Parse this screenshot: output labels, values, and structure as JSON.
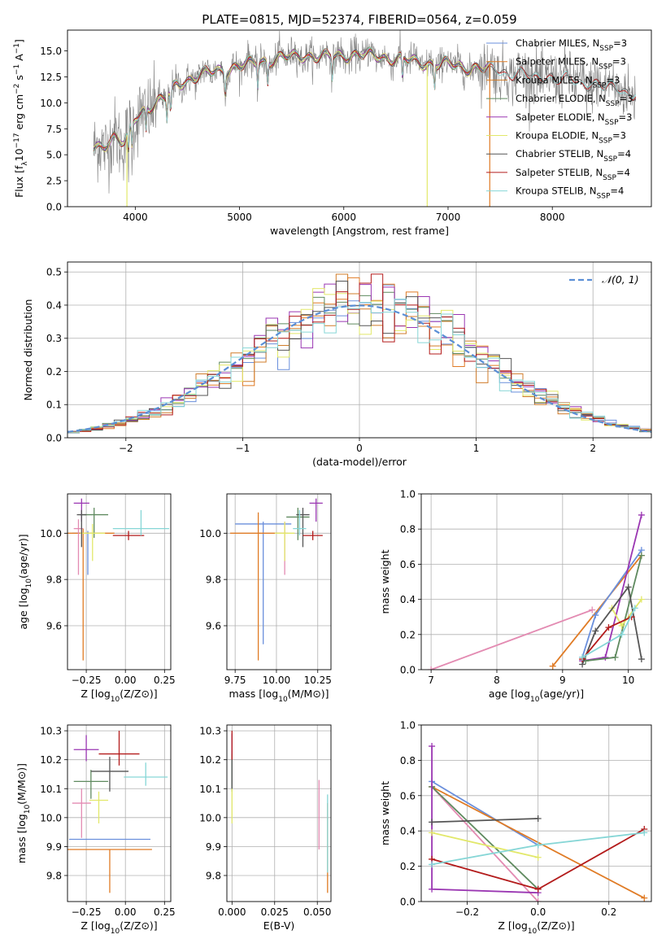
{
  "figure": {
    "title": "PLATE=0815, MJD=52374, FIBERID=0564, z=0.059"
  },
  "colors": {
    "series": [
      "#6a8fdc",
      "#e07b25",
      "#d07c2a",
      "#5f8a5f",
      "#9a36b2",
      "#e2e86a",
      "#555555",
      "#b31b1b",
      "#86d6d6"
    ],
    "data": "#808080",
    "mixed_pink": "#e38bb2",
    "grid": "#b0b0b0"
  },
  "chart_data": [
    {
      "id": "spectrum",
      "type": "line",
      "title": "PLATE=0815, MJD=52374, FIBERID=0564, z=0.059",
      "xlabel": "wavelength [Angstrom, rest frame]",
      "ylabel": "Flux [f_λ10^-17 erg cm^-2 s^-1 A^-1]",
      "xlim": [
        3350,
        8950
      ],
      "ylim": [
        0,
        17
      ],
      "xticks": [
        4000,
        5000,
        6000,
        7000,
        8000
      ],
      "yticks": [
        0.0,
        2.5,
        5.0,
        7.5,
        10.0,
        12.5,
        15.0
      ],
      "grid": false,
      "legend_position": "top-right",
      "series": [
        {
          "name": "Chabrier MILES, N_SSP=3",
          "color": "#6a8fdc"
        },
        {
          "name": "Salpeter MILES, N_SSP=3",
          "color": "#e07b25"
        },
        {
          "name": "Kroupa MILES, N_SSP=3",
          "color": "#d07c2a"
        },
        {
          "name": "Chabrier ELODIE, N_SSP=3",
          "color": "#5f8a5f"
        },
        {
          "name": "Salpeter ELODIE, N_SSP=3",
          "color": "#9a36b2"
        },
        {
          "name": "Kroupa ELODIE, N_SSP=3",
          "color": "#e2e86a"
        },
        {
          "name": "Chabrier STELIB, N_SSP=4",
          "color": "#555555"
        },
        {
          "name": "Salpeter STELIB, N_SSP=4",
          "color": "#b31b1b"
        },
        {
          "name": "Kroupa STELIB, N_SSP=4",
          "color": "#86d6d6"
        }
      ],
      "continuum": {
        "x": [
          3600,
          3700,
          3800,
          3900,
          4000,
          4100,
          4200,
          4300,
          4400,
          4600,
          4800,
          5000,
          5200,
          5400,
          5600,
          5800,
          6000,
          6200,
          6400,
          6600,
          6800,
          7000,
          7200,
          7400,
          7500,
          7600,
          7700,
          7800,
          7900,
          8000,
          8100,
          8200,
          8300,
          8400,
          8500,
          8600,
          8700,
          8800
        ],
        "y": [
          5.5,
          6.0,
          6.8,
          6.0,
          8.5,
          9.5,
          10.0,
          10.5,
          11.8,
          12.6,
          13.1,
          13.5,
          14.0,
          14.3,
          14.6,
          14.4,
          14.6,
          14.6,
          14.4,
          14.1,
          13.8,
          13.7,
          13.4,
          13.2,
          13.0,
          12.9,
          12.7,
          12.5,
          12.4,
          12.5,
          12.2,
          12.1,
          12.0,
          11.8,
          11.6,
          11.4,
          11.1,
          10.9
        ]
      },
      "model_dropouts": [
        {
          "x": 6800,
          "min_y": 0,
          "color": "#e2e86a"
        },
        {
          "x": 7400,
          "min_y": 0,
          "color": "#e07b25"
        },
        {
          "x": 3920,
          "min_y": 0,
          "color": "#e2e86a"
        }
      ]
    },
    {
      "id": "residuals",
      "type": "line",
      "xlabel": "(data-model)/error",
      "ylabel": "Normed distribution",
      "xlim": [
        -2.5,
        2.5
      ],
      "ylim": [
        0,
        0.53
      ],
      "xticks": [
        -2,
        -1,
        0,
        1,
        2
      ],
      "yticks": [
        0.0,
        0.1,
        0.2,
        0.3,
        0.4,
        0.5
      ],
      "grid": true,
      "legend_position": "top-right",
      "reference": {
        "name": "𝒩(0, 1)",
        "color": "#5b8fd6",
        "mu": 0,
        "sigma": 1,
        "style": "dashed"
      },
      "bin_width": 0.1
    },
    {
      "id": "age_vs_Z",
      "type": "scatter",
      "xlabel": "Z [log10(Z/Z⊙)]",
      "ylabel": "age [log10(age/yr)]",
      "xlim": [
        -0.37,
        0.29
      ],
      "ylim": [
        9.41,
        10.17
      ],
      "xticks": [
        -0.25,
        0.0,
        0.25
      ],
      "xticklabels": [
        "−0.25",
        "0.00",
        "0.25"
      ],
      "yticks": [
        9.6,
        9.8,
        10.0
      ],
      "grid": true,
      "points": [
        {
          "x": -0.24,
          "xerr": 0.1,
          "y": 10.0,
          "yerr_lo": 0.18,
          "yerr_hi": 0.01,
          "color": "#6a8fdc"
        },
        {
          "x": -0.27,
          "xerr": 0.2,
          "y": 10.0,
          "yerr_lo": 0.55,
          "yerr_hi": 0.02,
          "color": "#e07b25"
        },
        {
          "x": -0.3,
          "xerr": 0.03,
          "y": 10.02,
          "yerr_lo": 0.2,
          "yerr_hi": 0.04,
          "color": "#e38bb2"
        },
        {
          "x": -0.2,
          "xerr": 0.09,
          "y": 10.08,
          "yerr_lo": 0.1,
          "yerr_hi": 0.03,
          "color": "#5f8a5f"
        },
        {
          "x": -0.28,
          "xerr": 0.05,
          "y": 10.13,
          "yerr_lo": 0.08,
          "yerr_hi": 0.02,
          "color": "#9a36b2"
        },
        {
          "x": -0.21,
          "xerr": 0.08,
          "y": 10.0,
          "yerr_lo": 0.12,
          "yerr_hi": 0.04,
          "color": "#e2e86a"
        },
        {
          "x": -0.28,
          "xerr": 0.03,
          "y": 10.08,
          "yerr_lo": 0.14,
          "yerr_hi": 0.02,
          "color": "#555555"
        },
        {
          "x": 0.02,
          "xerr": 0.1,
          "y": 9.99,
          "yerr_lo": 0.02,
          "yerr_hi": 0.02,
          "color": "#b31b1b"
        },
        {
          "x": 0.1,
          "xerr": 0.18,
          "y": 10.02,
          "yerr_lo": 0.03,
          "yerr_hi": 0.08,
          "color": "#86d6d6"
        }
      ]
    },
    {
      "id": "age_vs_mass",
      "type": "scatter",
      "xlabel": "mass [log10(M/M⊙)]",
      "xlim": [
        9.7,
        10.33
      ],
      "ylim": [
        9.41,
        10.17
      ],
      "xticks": [
        9.75,
        10.0,
        10.25
      ],
      "xticklabels": [
        "9.75",
        "10.00",
        "10.25"
      ],
      "yticks": [
        9.6,
        9.8,
        10.0
      ],
      "grid": true,
      "points": [
        {
          "x": 9.92,
          "xerr": 0.17,
          "y": 10.04,
          "yerr_lo": 0.52,
          "yerr_hi": 0.01,
          "color": "#6a8fdc"
        },
        {
          "x": 9.89,
          "xerr": 0.17,
          "y": 10.0,
          "yerr_lo": 0.55,
          "yerr_hi": 0.09,
          "color": "#e07b25"
        },
        {
          "x": 10.05,
          "xerr": 0.02,
          "y": 10.0,
          "yerr_lo": 0.18,
          "yerr_hi": 0.05,
          "color": "#e38bb2"
        },
        {
          "x": 10.13,
          "xerr": 0.07,
          "y": 10.07,
          "yerr_lo": 0.1,
          "yerr_hi": 0.04,
          "color": "#5f8a5f"
        },
        {
          "x": 10.24,
          "xerr": 0.04,
          "y": 10.13,
          "yerr_lo": 0.08,
          "yerr_hi": 0.02,
          "color": "#9a36b2"
        },
        {
          "x": 10.05,
          "xerr": 0.06,
          "y": 10.0,
          "yerr_lo": 0.12,
          "yerr_hi": 0.05,
          "color": "#e2e86a"
        },
        {
          "x": 10.16,
          "xerr": 0.04,
          "y": 10.08,
          "yerr_lo": 0.14,
          "yerr_hi": 0.03,
          "color": "#555555"
        },
        {
          "x": 10.22,
          "xerr": 0.06,
          "y": 9.99,
          "yerr_lo": 0.02,
          "yerr_hi": 0.02,
          "color": "#b31b1b"
        },
        {
          "x": 10.14,
          "xerr": 0.04,
          "y": 10.02,
          "yerr_lo": 0.03,
          "yerr_hi": 0.08,
          "color": "#86d6d6"
        }
      ]
    },
    {
      "id": "mass_weight_vs_age",
      "type": "line",
      "xlabel": "age  [log10(age/yr)]",
      "ylabel": "mass weight",
      "xlim": [
        6.85,
        10.35
      ],
      "ylim": [
        0,
        1
      ],
      "xticks": [
        7,
        8,
        9,
        10
      ],
      "yticks": [
        0.0,
        0.2,
        0.4,
        0.6,
        0.8,
        1.0
      ],
      "grid": true,
      "series": [
        {
          "color": "#e38bb2",
          "x": [
            7.0,
            9.45
          ],
          "y": [
            0.0,
            0.34
          ]
        },
        {
          "color": "#e07b25",
          "x": [
            8.85,
            10.2
          ],
          "y": [
            0.02,
            0.65
          ]
        },
        {
          "color": "#6a8fdc",
          "x": [
            9.3,
            9.5,
            10.2
          ],
          "y": [
            0.07,
            0.31,
            0.68
          ]
        },
        {
          "color": "#9a36b2",
          "x": [
            9.3,
            9.65,
            10.2
          ],
          "y": [
            0.05,
            0.07,
            0.88
          ]
        },
        {
          "color": "#5f8a5f",
          "x": [
            9.35,
            9.8,
            10.2
          ],
          "y": [
            0.05,
            0.07,
            0.65
          ]
        },
        {
          "color": "#e2e86a",
          "x": [
            9.75,
            9.9,
            10.2
          ],
          "y": [
            0.35,
            0.25,
            0.4
          ]
        },
        {
          "color": "#555555",
          "x": [
            9.3,
            9.5,
            10.0,
            10.2
          ],
          "y": [
            0.03,
            0.22,
            0.47,
            0.06
          ]
        },
        {
          "color": "#b31b1b",
          "x": [
            9.3,
            9.7,
            10.05
          ],
          "y": [
            0.06,
            0.24,
            0.3
          ]
        },
        {
          "color": "#86d6d6",
          "x": [
            9.3,
            9.9,
            10.1
          ],
          "y": [
            0.07,
            0.2,
            0.35
          ]
        }
      ]
    },
    {
      "id": "mass_vs_Z",
      "type": "scatter",
      "xlabel": "Z [log10(Z/Z⊙)]",
      "ylabel": "mass [log10(M/M⊙)]",
      "xlim": [
        -0.37,
        0.29
      ],
      "ylim": [
        9.71,
        10.32
      ],
      "xticks": [
        -0.25,
        0.0,
        0.25
      ],
      "xticklabels": [
        "−0.25",
        "0.00",
        "0.25"
      ],
      "yticks": [
        9.8,
        9.9,
        10.0,
        10.1,
        10.2,
        10.3
      ],
      "grid": true,
      "points": [
        {
          "x": -0.1,
          "xerr": 0.26,
          "y": 9.925,
          "yerr_lo": 0.0,
          "yerr_hi": 0.0,
          "color": "#6a8fdc"
        },
        {
          "x": -0.1,
          "xerr": 0.27,
          "y": 9.89,
          "yerr_lo": 0.15,
          "yerr_hi": 0.0,
          "color": "#e07b25"
        },
        {
          "x": -0.28,
          "xerr": 0.06,
          "y": 10.05,
          "yerr_lo": 0.12,
          "yerr_hi": 0.05,
          "color": "#e38bb2"
        },
        {
          "x": -0.22,
          "xerr": 0.11,
          "y": 10.125,
          "yerr_lo": 0.06,
          "yerr_hi": 0.04,
          "color": "#5f8a5f"
        },
        {
          "x": -0.25,
          "xerr": 0.08,
          "y": 10.235,
          "yerr_lo": 0.04,
          "yerr_hi": 0.05,
          "color": "#9a36b2"
        },
        {
          "x": -0.17,
          "xerr": 0.06,
          "y": 10.06,
          "yerr_lo": 0.08,
          "yerr_hi": 0.03,
          "color": "#e2e86a"
        },
        {
          "x": -0.1,
          "xerr": 0.12,
          "y": 10.16,
          "yerr_lo": 0.07,
          "yerr_hi": 0.05,
          "color": "#555555"
        },
        {
          "x": -0.04,
          "xerr": 0.13,
          "y": 10.22,
          "yerr_lo": 0.04,
          "yerr_hi": 0.08,
          "color": "#b31b1b"
        },
        {
          "x": 0.13,
          "xerr": 0.14,
          "y": 10.14,
          "yerr_lo": 0.03,
          "yerr_hi": 0.05,
          "color": "#86d6d6"
        }
      ]
    },
    {
      "id": "mass_vs_EBV",
      "type": "scatter",
      "xlabel": "E(B-V)",
      "xlim": [
        -0.003,
        0.058
      ],
      "ylim": [
        9.71,
        10.32
      ],
      "xticks": [
        0.0,
        0.025,
        0.05
      ],
      "xticklabels": [
        "0.000",
        "0.025",
        "0.050"
      ],
      "yticks": [
        9.8,
        9.9,
        10.0,
        10.1,
        10.2,
        10.3
      ],
      "grid": true,
      "points": [
        {
          "x": 0.0,
          "y": 10.17,
          "yerr_lo": 0.07,
          "yerr_hi": 0.06,
          "color": "#6a8fdc"
        },
        {
          "x": 0.056,
          "y": 9.9,
          "yerr_lo": 0.16,
          "yerr_hi": 0.15,
          "color": "#e07b25"
        },
        {
          "x": 0.051,
          "y": 10.01,
          "yerr_lo": 0.12,
          "yerr_hi": 0.12,
          "color": "#e38bb2"
        },
        {
          "x": 0.0,
          "y": 10.15,
          "yerr_lo": 0.06,
          "yerr_hi": 0.06,
          "color": "#5f8a5f"
        },
        {
          "x": 0.0,
          "y": 10.24,
          "yerr_lo": 0.04,
          "yerr_hi": 0.05,
          "color": "#9a36b2"
        },
        {
          "x": 0.0,
          "y": 10.05,
          "yerr_lo": 0.07,
          "yerr_hi": 0.05,
          "color": "#e2e86a"
        },
        {
          "x": 0.0,
          "y": 10.17,
          "yerr_lo": 0.07,
          "yerr_hi": 0.05,
          "color": "#555555"
        },
        {
          "x": 0.0,
          "y": 10.24,
          "yerr_lo": 0.04,
          "yerr_hi": 0.06,
          "color": "#b31b1b"
        },
        {
          "x": 0.056,
          "y": 9.93,
          "yerr_lo": 0.12,
          "yerr_hi": 0.15,
          "color": "#86d6d6"
        }
      ]
    },
    {
      "id": "mass_weight_vs_Z",
      "type": "line",
      "xlabel": "Z [log10(Z/Z⊙)]",
      "ylabel": "mass weight",
      "xlim": [
        -0.33,
        0.32
      ],
      "ylim": [
        0,
        1
      ],
      "xticks": [
        -0.2,
        0.0,
        0.2
      ],
      "xticklabels": [
        "−0.2",
        "0.0",
        "0.2"
      ],
      "yticks": [
        0.0,
        0.2,
        0.4,
        0.6,
        0.8,
        1.0
      ],
      "grid": true,
      "series": [
        {
          "color": "#6a8fdc",
          "x": [
            -0.3,
            0.0
          ],
          "y": [
            0.68,
            0.32
          ]
        },
        {
          "color": "#e07b25",
          "x": [
            -0.3,
            0.3
          ],
          "y": [
            0.65,
            0.02
          ]
        },
        {
          "color": "#e38bb2",
          "x": [
            -0.3,
            0.0
          ],
          "y": [
            0.65,
            0.0
          ]
        },
        {
          "color": "#5f8a5f",
          "x": [
            -0.3,
            0.0
          ],
          "y": [
            0.65,
            0.07
          ]
        },
        {
          "color": "#9a36b2",
          "x": [
            -0.3,
            -0.3,
            0.0
          ],
          "y": [
            0.88,
            0.07,
            0.05
          ]
        },
        {
          "color": "#e2e86a",
          "x": [
            -0.3,
            0.0
          ],
          "y": [
            0.39,
            0.25
          ]
        },
        {
          "color": "#555555",
          "x": [
            -0.3,
            0.0
          ],
          "y": [
            0.45,
            0.47
          ]
        },
        {
          "color": "#b31b1b",
          "x": [
            -0.3,
            0.0,
            0.3
          ],
          "y": [
            0.24,
            0.07,
            0.41
          ]
        },
        {
          "color": "#86d6d6",
          "x": [
            -0.3,
            0.0,
            0.3
          ],
          "y": [
            0.21,
            0.32,
            0.39
          ]
        }
      ]
    }
  ]
}
